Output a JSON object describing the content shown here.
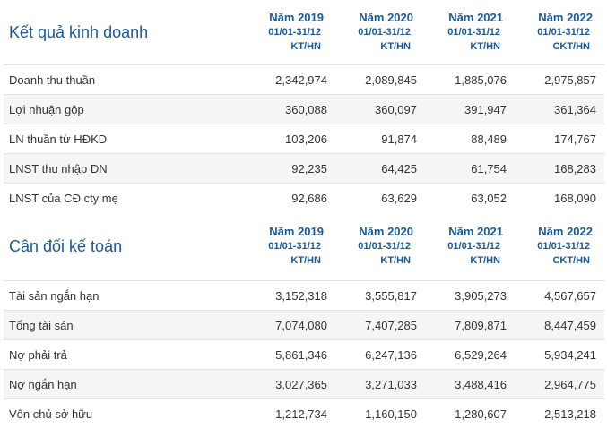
{
  "sections": [
    {
      "title": "Kết quả kinh doanh",
      "columns": [
        {
          "year": "Năm 2019",
          "period": "01/01-31/12",
          "unit": "KT/HN"
        },
        {
          "year": "Năm 2020",
          "period": "01/01-31/12",
          "unit": "KT/HN"
        },
        {
          "year": "Năm 2021",
          "period": "01/01-31/12",
          "unit": "KT/HN"
        },
        {
          "year": "Năm 2022",
          "period": "01/01-31/12",
          "unit": "CKT/HN"
        }
      ],
      "rows": [
        {
          "label": "Doanh thu thuần",
          "values": [
            "2,342,974",
            "2,089,845",
            "1,885,076",
            "2,975,857"
          ]
        },
        {
          "label": "Lợi nhuận gộp",
          "values": [
            "360,088",
            "360,097",
            "391,947",
            "361,364"
          ]
        },
        {
          "label": "LN thuần từ HĐKD",
          "values": [
            "103,206",
            "91,874",
            "88,489",
            "174,767"
          ]
        },
        {
          "label": "LNST thu nhập DN",
          "values": [
            "92,235",
            "64,425",
            "61,754",
            "168,283"
          ]
        },
        {
          "label": "LNST của CĐ cty mẹ",
          "values": [
            "92,686",
            "63,629",
            "63,052",
            "168,090"
          ]
        }
      ]
    },
    {
      "title": "Cân đối kế toán",
      "columns": [
        {
          "year": "Năm 2019",
          "period": "01/01-31/12",
          "unit": "KT/HN"
        },
        {
          "year": "Năm 2020",
          "period": "01/01-31/12",
          "unit": "KT/HN"
        },
        {
          "year": "Năm 2021",
          "period": "01/01-31/12",
          "unit": "KT/HN"
        },
        {
          "year": "Năm 2022",
          "period": "01/01-31/12",
          "unit": "CKT/HN"
        }
      ],
      "rows": [
        {
          "label": "Tài sản ngắn hạn",
          "values": [
            "3,152,318",
            "3,555,817",
            "3,905,273",
            "4,567,657"
          ]
        },
        {
          "label": "Tổng tài sản",
          "values": [
            "7,074,080",
            "7,407,285",
            "7,809,871",
            "8,447,459"
          ]
        },
        {
          "label": "Nợ phải trả",
          "values": [
            "5,861,346",
            "6,247,136",
            "6,529,264",
            "5,934,241"
          ]
        },
        {
          "label": "Nợ ngắn hạn",
          "values": [
            "3,027,365",
            "3,271,033",
            "3,488,416",
            "2,964,775"
          ]
        },
        {
          "label": "Vốn chủ sở hữu",
          "values": [
            "1,212,734",
            "1,160,150",
            "1,280,607",
            "2,513,218"
          ]
        }
      ]
    }
  ]
}
